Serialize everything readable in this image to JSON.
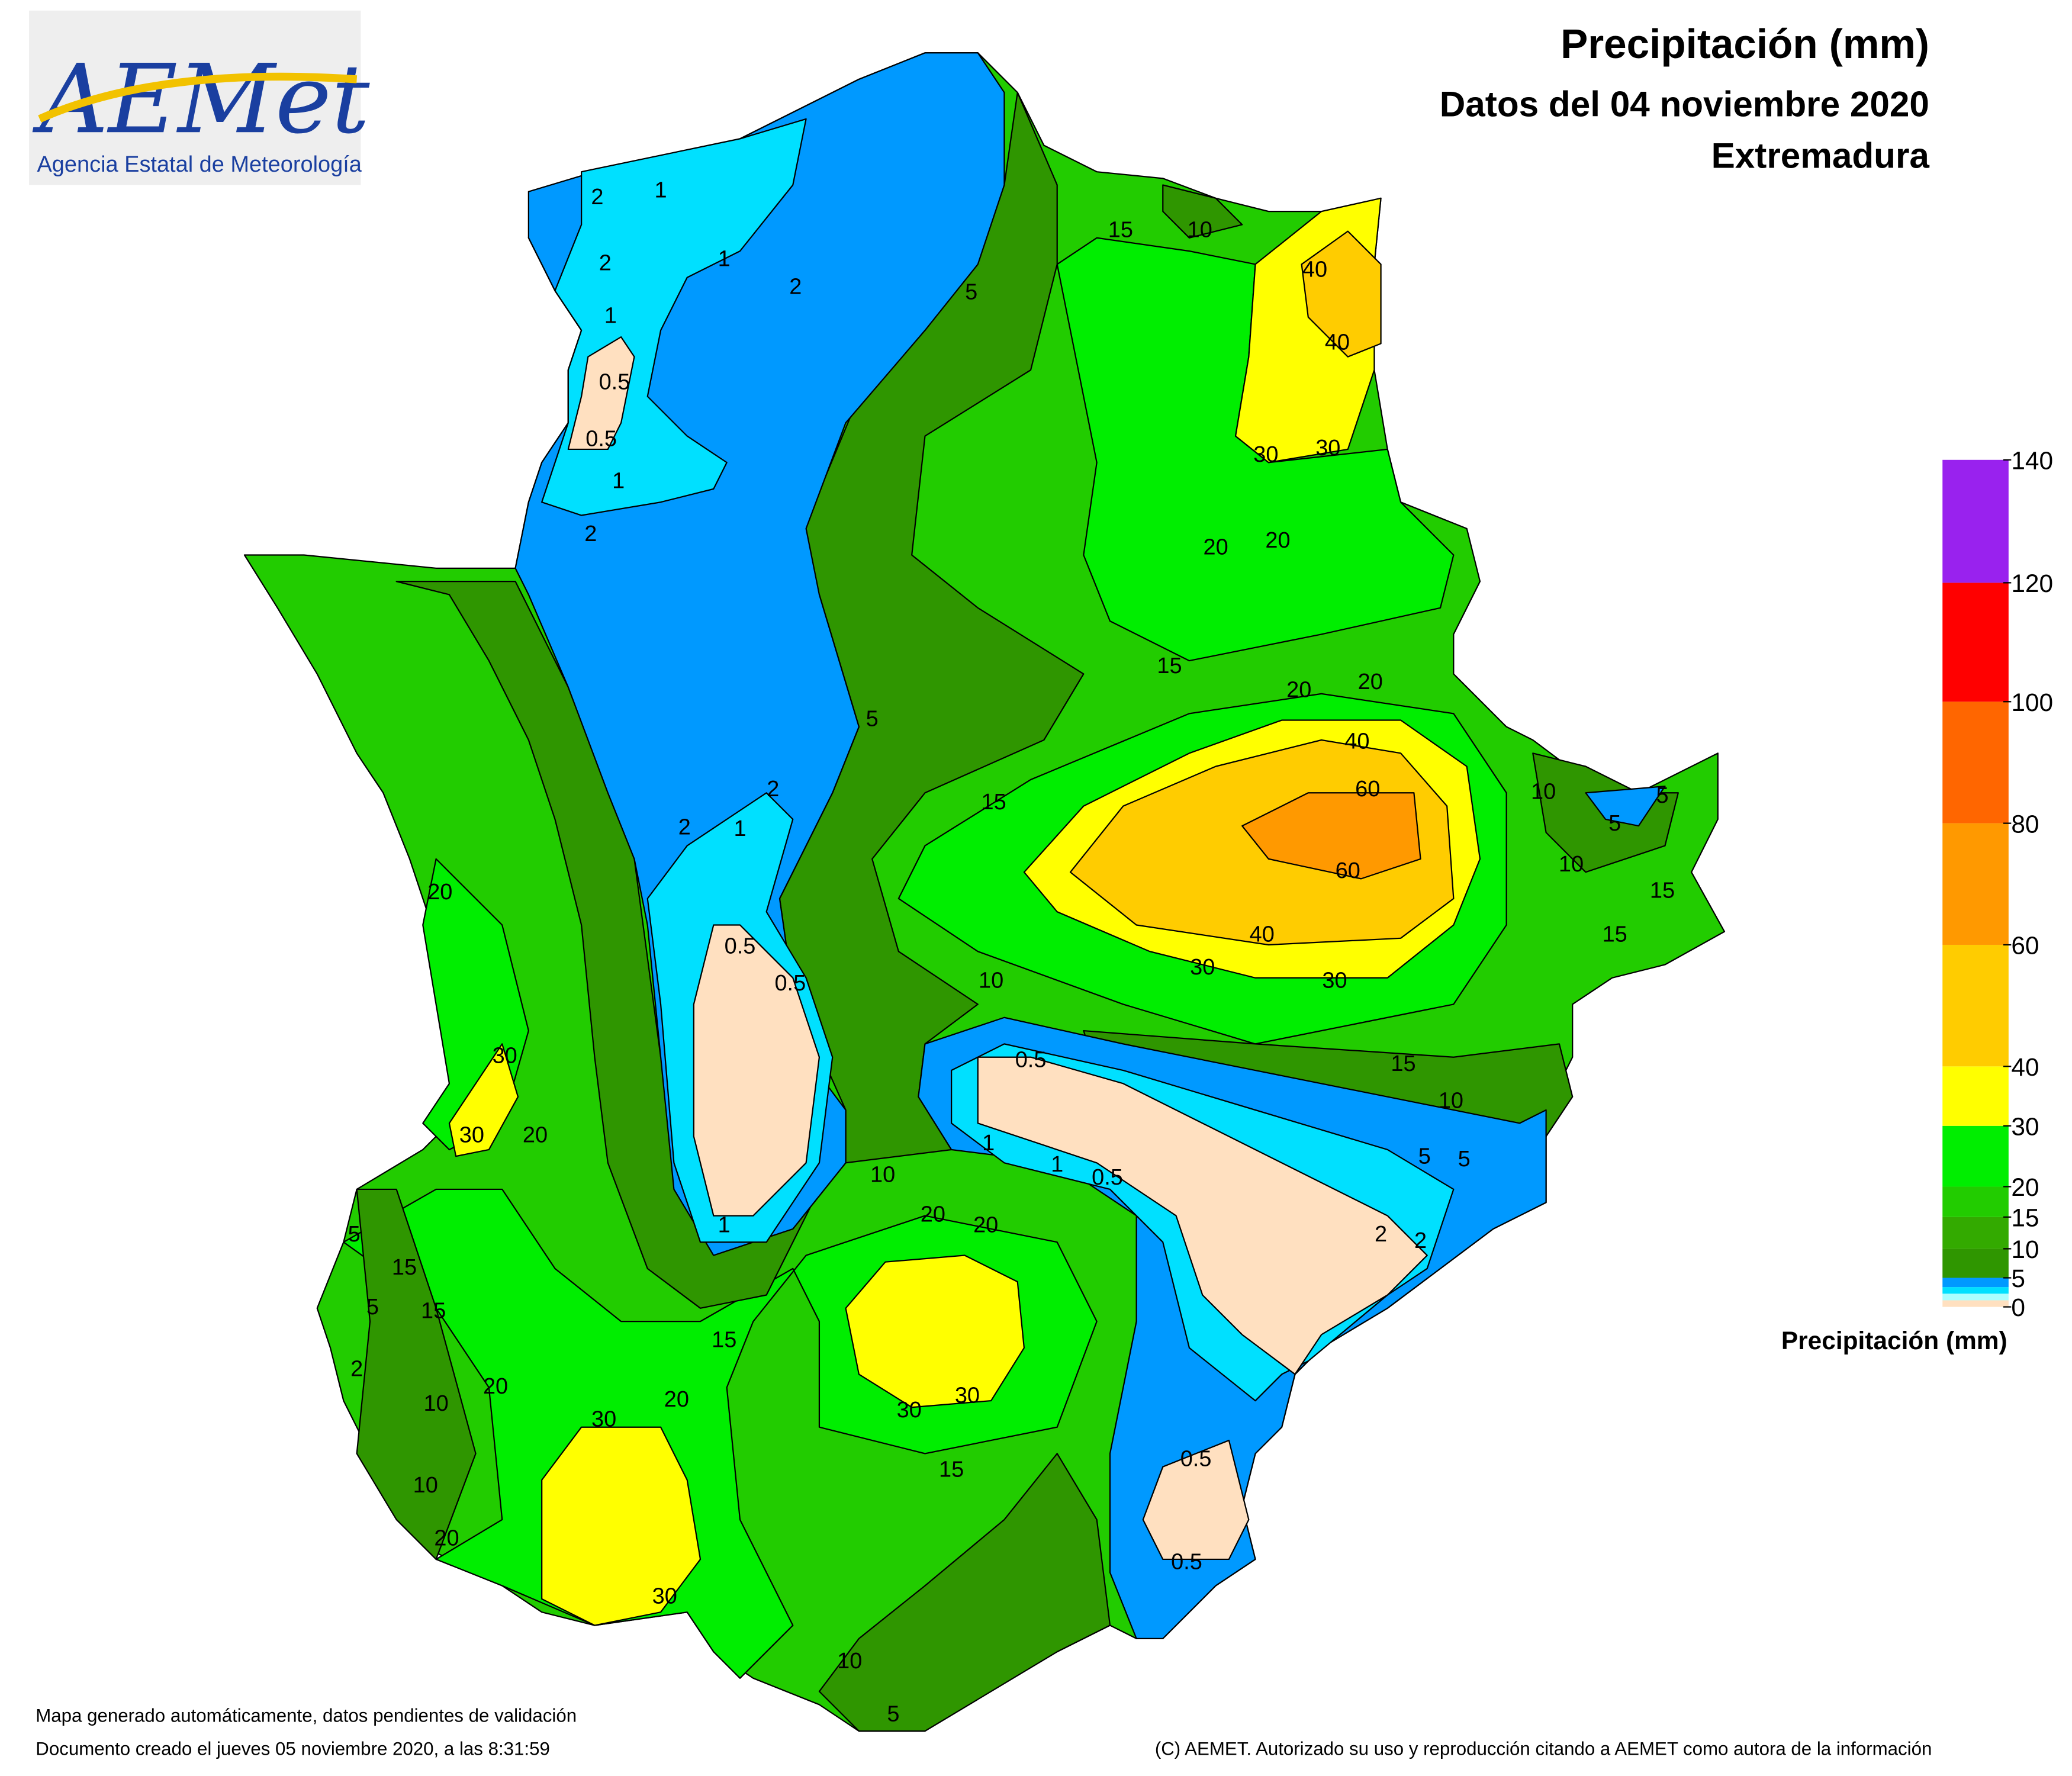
{
  "header": {
    "title": "Precipitación (mm)",
    "subtitle": "Datos del 04 noviembre 2020",
    "region": "Extremadura"
  },
  "logo": {
    "name": "AEMet",
    "agency": "Agencia Estatal de Meteorología"
  },
  "legend": {
    "title": "Precipitación (mm)",
    "ticks": [
      0,
      5,
      10,
      15,
      20,
      30,
      40,
      60,
      80,
      100,
      120,
      140
    ],
    "colors": [
      "#ffe0c0",
      "#aaffff",
      "#00e0ff",
      "#0099ff",
      "#2f9600",
      "#33aa00",
      "#22cc00",
      "#00ee00",
      "#ffff00",
      "#ffcc00",
      "#ff9900",
      "#ff6600",
      "#ff0000",
      "#9922ee"
    ]
  },
  "map": {
    "contour_labels": [
      "2",
      "1",
      "2",
      "1",
      "0.5",
      "0.5",
      "1",
      "2",
      "1",
      "2",
      "5",
      "15",
      "10",
      "40",
      "40",
      "30",
      "30",
      "20",
      "20",
      "15",
      "20",
      "20",
      "5",
      "2",
      "2",
      "1",
      "15",
      "40",
      "60",
      "60",
      "40",
      "30",
      "30",
      "10",
      "20",
      "0.5",
      "0.5",
      "0.5",
      "30",
      "30",
      "20",
      "15",
      "10",
      "5",
      "5",
      "1",
      "1",
      "0.5",
      "2",
      "2",
      "1",
      "10",
      "20",
      "20",
      "5",
      "15",
      "15",
      "5",
      "2",
      "15",
      "20",
      "10",
      "20",
      "30",
      "30",
      "30",
      "15",
      "0.5",
      "10",
      "20",
      "0.5",
      "30",
      "10",
      "5",
      "10",
      "5",
      "5",
      "10",
      "15",
      "15"
    ]
  },
  "footer": {
    "note": "Mapa generado automáticamente, datos pendientes de validación",
    "created": "Documento creado el jueves 05 noviembre 2020, a las 8:31:59",
    "copyright": "(C) AEMET. Autorizado su uso y reproducción citando a AEMET como autora de la información"
  }
}
